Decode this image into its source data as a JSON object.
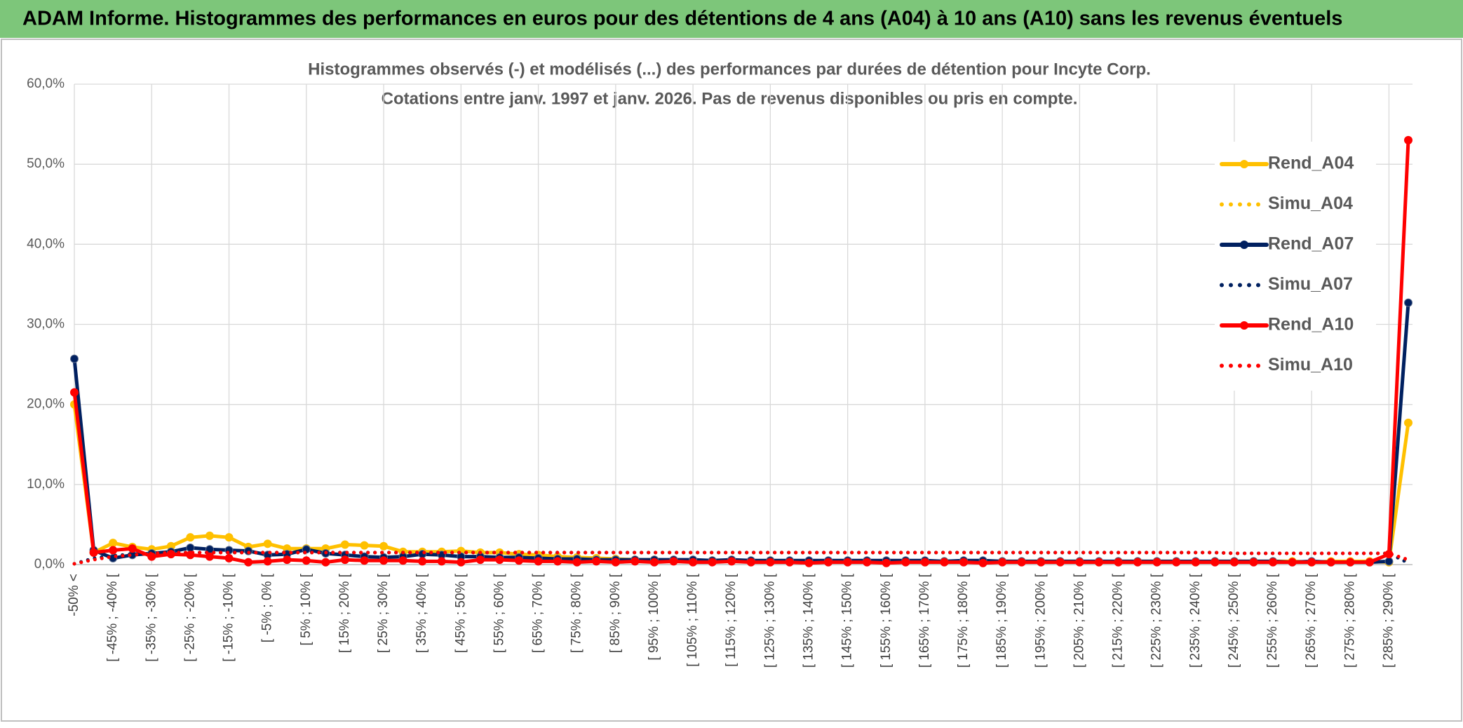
{
  "header": {
    "title": "ADAM Informe. Histogrammes des performances en euros pour des détentions de 4 ans (A04) à 10 ans (A10) sans les revenus éventuels"
  },
  "chart_data": {
    "type": "line",
    "title": "Histogrammes observés (-) et modélisés (...) des performances par durées de détention pour Incyte Corp.",
    "subtitle": "Cotations entre janv. 1997 et janv. 2026. Pas de revenus disponibles ou pris en compte.",
    "categories": [
      "-50% <",
      null,
      "[ -45% ; -40% [",
      null,
      "[ -35% ; -30% [",
      null,
      "[ -25% ; -20% [",
      null,
      "[ -15% ; -10% [",
      null,
      "[ -5% ; 0% [",
      null,
      "[ 5% ; 10% [",
      null,
      "[ 15% ; 20% [",
      null,
      "[ 25% ; 30% [",
      null,
      "[ 35% ; 40% [",
      null,
      "[ 45% ; 50% [",
      null,
      "[ 55% ; 60% [",
      null,
      "[ 65% ; 70% [",
      null,
      "[ 75% ; 80% [",
      null,
      "[ 85% ; 90% [",
      null,
      "[ 95% ; 100% [",
      null,
      "[ 105% ; 110% [",
      null,
      "[ 115% ; 120% [",
      null,
      "[ 125% ; 130% [",
      null,
      "[ 135% ; 140% [",
      null,
      "[ 145% ; 150% [",
      null,
      "[ 155% ; 160% [",
      null,
      "[ 165% ; 170% [",
      null,
      "[ 175% ; 180% [",
      null,
      "[ 185% ; 190% [",
      null,
      "[ 195% ; 200% [",
      null,
      "[ 205% ; 210% [",
      null,
      "[ 215% ; 220% [",
      null,
      "[ 225% ; 230% [",
      null,
      "[ 235% ; 240% [",
      null,
      "[ 245% ; 250% [",
      null,
      "[ 255% ; 260% [",
      null,
      "[ 265% ; 270% [",
      null,
      "[ 275% ; 280% [",
      null,
      "[ 285% ; 290% [",
      null
    ],
    "series": [
      {
        "name": "Rend_A04",
        "color": "#ffc000",
        "line_style": "solid",
        "values": [
          20,
          1.5,
          2.7,
          2.2,
          1.9,
          2.3,
          3.4,
          3.6,
          3.4,
          2.2,
          2.6,
          2.0,
          2.0,
          2.0,
          2.5,
          2.4,
          2.3,
          1.6,
          1.6,
          1.6,
          1.7,
          1.5,
          1.5,
          1.3,
          1.2,
          1.0,
          0.9,
          0.8,
          0.7,
          0.6,
          0.6,
          0.5,
          0.5,
          0.5,
          0.5,
          0.4,
          0.5,
          0.4,
          0.4,
          0.4,
          0.4,
          0.4,
          0.4,
          0.4,
          0.3,
          0.4,
          0.4,
          0.4,
          0.4,
          0.4,
          0.4,
          0.4,
          0.4,
          0.3,
          0.4,
          0.4,
          0.4,
          0.4,
          0.3,
          0.4,
          0.4,
          0.4,
          0.4,
          0.4,
          0.3,
          0.4,
          0.4,
          0.4,
          0.3,
          17.7
        ]
      },
      {
        "name": "Simu_A04",
        "color": "#ffc000",
        "line_style": "dotted",
        "values": [
          0.1,
          0.7,
          1.1,
          1.3,
          1.4,
          1.5,
          1.5,
          1.5,
          1.5,
          1.5,
          1.5,
          1.5,
          1.5,
          1.5,
          1.5,
          1.5,
          1.5,
          1.5,
          1.5,
          1.5,
          1.5,
          1.5,
          1.5,
          1.5,
          1.5,
          1.5,
          1.5,
          1.5,
          1.5,
          1.5,
          1.5,
          1.5,
          1.5,
          1.5,
          1.5,
          1.5,
          1.5,
          1.5,
          1.5,
          1.5,
          1.5,
          1.5,
          1.5,
          1.5,
          1.5,
          1.5,
          1.5,
          1.5,
          1.5,
          1.5,
          1.5,
          1.5,
          1.5,
          1.5,
          1.5,
          1.5,
          1.5,
          1.5,
          1.5,
          1.5,
          1.4,
          1.4,
          1.4,
          1.4,
          1.4,
          1.4,
          1.4,
          1.4,
          1.4,
          0.3
        ]
      },
      {
        "name": "Rend_A07",
        "color": "#002060",
        "line_style": "solid",
        "values": [
          25.7,
          1.8,
          0.8,
          1.2,
          1.4,
          1.6,
          2.1,
          1.9,
          1.8,
          1.7,
          1.2,
          1.3,
          1.9,
          1.4,
          1.2,
          1.0,
          0.9,
          1.0,
          1.3,
          1.2,
          1.0,
          1.0,
          0.9,
          0.9,
          0.8,
          0.7,
          0.7,
          0.6,
          0.6,
          0.6,
          0.6,
          0.6,
          0.6,
          0.5,
          0.6,
          0.5,
          0.5,
          0.5,
          0.5,
          0.5,
          0.5,
          0.5,
          0.5,
          0.5,
          0.5,
          0.4,
          0.5,
          0.5,
          0.4,
          0.4,
          0.4,
          0.4,
          0.4,
          0.4,
          0.4,
          0.4,
          0.4,
          0.4,
          0.4,
          0.4,
          0.4,
          0.4,
          0.4,
          0.3,
          0.4,
          0.3,
          0.3,
          0.3,
          0.4,
          32.7
        ]
      },
      {
        "name": "Simu_A07",
        "color": "#002060",
        "line_style": "dotted",
        "values": [
          0.1,
          0.8,
          1.1,
          1.3,
          1.4,
          1.5,
          1.5,
          1.5,
          1.5,
          1.5,
          1.5,
          1.5,
          1.5,
          1.5,
          1.5,
          1.5,
          1.5,
          1.5,
          1.5,
          1.5,
          1.5,
          1.5,
          1.5,
          1.5,
          1.5,
          1.5,
          1.5,
          1.5,
          1.5,
          1.5,
          1.5,
          1.5,
          1.5,
          1.5,
          1.5,
          1.5,
          1.5,
          1.5,
          1.5,
          1.5,
          1.5,
          1.5,
          1.5,
          1.5,
          1.5,
          1.5,
          1.5,
          1.5,
          1.5,
          1.5,
          1.5,
          1.5,
          1.5,
          1.5,
          1.5,
          1.5,
          1.5,
          1.5,
          1.5,
          1.5,
          1.4,
          1.4,
          1.4,
          1.4,
          1.4,
          1.4,
          1.4,
          1.4,
          1.4,
          0.2
        ]
      },
      {
        "name": "Rend_A10",
        "color": "#ff0000",
        "line_style": "solid",
        "values": [
          21.5,
          1.5,
          1.8,
          2.0,
          1.0,
          1.3,
          1.2,
          1.0,
          0.8,
          0.3,
          0.4,
          0.6,
          0.5,
          0.3,
          0.6,
          0.5,
          0.5,
          0.5,
          0.4,
          0.4,
          0.3,
          0.6,
          0.6,
          0.5,
          0.4,
          0.4,
          0.3,
          0.4,
          0.3,
          0.4,
          0.3,
          0.4,
          0.3,
          0.3,
          0.4,
          0.3,
          0.3,
          0.3,
          0.2,
          0.3,
          0.3,
          0.3,
          0.2,
          0.3,
          0.3,
          0.3,
          0.3,
          0.2,
          0.3,
          0.3,
          0.3,
          0.3,
          0.3,
          0.3,
          0.3,
          0.3,
          0.3,
          0.3,
          0.3,
          0.3,
          0.3,
          0.3,
          0.3,
          0.3,
          0.3,
          0.3,
          0.3,
          0.3,
          1.3,
          53.0
        ]
      },
      {
        "name": "Simu_A10",
        "color": "#ff0000",
        "line_style": "dotted",
        "values": [
          0.1,
          0.6,
          1.0,
          1.2,
          1.4,
          1.5,
          1.5,
          1.5,
          1.5,
          1.5,
          1.5,
          1.5,
          1.5,
          1.5,
          1.5,
          1.5,
          1.5,
          1.5,
          1.5,
          1.5,
          1.5,
          1.5,
          1.5,
          1.5,
          1.5,
          1.5,
          1.5,
          1.5,
          1.5,
          1.5,
          1.5,
          1.5,
          1.5,
          1.5,
          1.5,
          1.5,
          1.5,
          1.5,
          1.5,
          1.5,
          1.5,
          1.5,
          1.5,
          1.5,
          1.5,
          1.5,
          1.5,
          1.5,
          1.5,
          1.5,
          1.5,
          1.5,
          1.5,
          1.5,
          1.5,
          1.5,
          1.5,
          1.5,
          1.5,
          1.5,
          1.4,
          1.4,
          1.4,
          1.4,
          1.4,
          1.4,
          1.4,
          1.4,
          1.4,
          0.6
        ]
      }
    ],
    "ylim": [
      0,
      60
    ],
    "yticks": [
      {
        "value": 0,
        "label": "0,0%"
      },
      {
        "value": 10,
        "label": "10,0%"
      },
      {
        "value": 20,
        "label": "20,0%"
      },
      {
        "value": 30,
        "label": "30,0%"
      },
      {
        "value": 40,
        "label": "40,0%"
      },
      {
        "value": 50,
        "label": "50,0%"
      },
      {
        "value": 60,
        "label": "60,0%"
      }
    ],
    "grid": true,
    "legend": "right"
  }
}
